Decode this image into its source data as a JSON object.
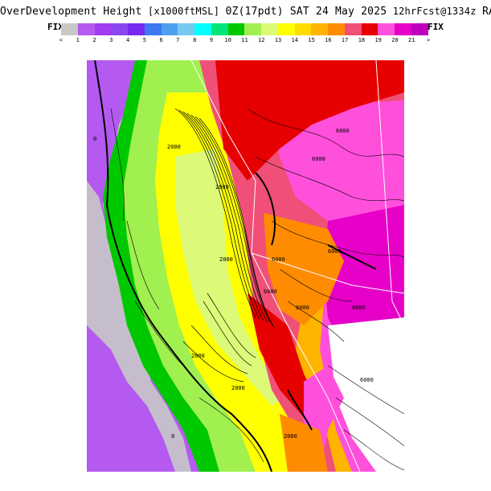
{
  "header": {
    "title": "OverDevelopment Height",
    "units": "[x1000ftMSL]",
    "valid": "0Z(17pdt) SAT 24 May 2025",
    "run": "12hrFcst@1334z",
    "model": "RAP"
  },
  "colorbar": {
    "left_label": "FIX",
    "right_label": "FIX",
    "colors": [
      "#c8c8c8",
      "#b45af0",
      "#a03cf0",
      "#8c46f0",
      "#7828f0",
      "#3c78f0",
      "#50a0f0",
      "#78c8f0",
      "#00ffff",
      "#00e678",
      "#00c800",
      "#a0f050",
      "#dcfa78",
      "#ffff00",
      "#ffdc00",
      "#ffb400",
      "#ff8c00",
      "#f05078",
      "#e60000",
      "#ff50dc",
      "#e600c8",
      "#be00be"
    ],
    "ticks": [
      "<",
      "1",
      "2",
      "3",
      "4",
      "5",
      "6",
      "7",
      "8",
      "9",
      "10",
      "11",
      "12",
      "13",
      "14",
      "15",
      "16",
      "17",
      "18",
      "19",
      "20",
      "21",
      ">"
    ]
  },
  "map": {
    "contour_labels": [
      "6000",
      "6000",
      "6000",
      "6000",
      "6000",
      "6000",
      "6000",
      "6000",
      "2000",
      "2000",
      "2000",
      "2000",
      "2000",
      "2000",
      "0",
      "0"
    ]
  }
}
